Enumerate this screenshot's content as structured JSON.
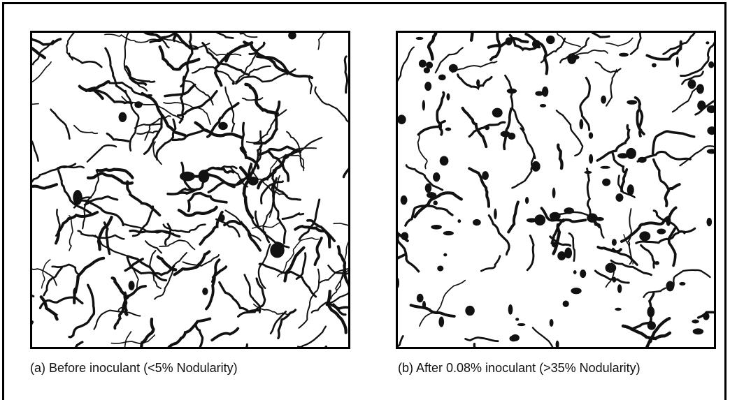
{
  "figure": {
    "panels": [
      {
        "caption": "(a) Before inoculant (<5% Nodularity)"
      },
      {
        "caption": "(b) After 0.08% inoculant (>35% Nodularity)"
      }
    ]
  }
}
